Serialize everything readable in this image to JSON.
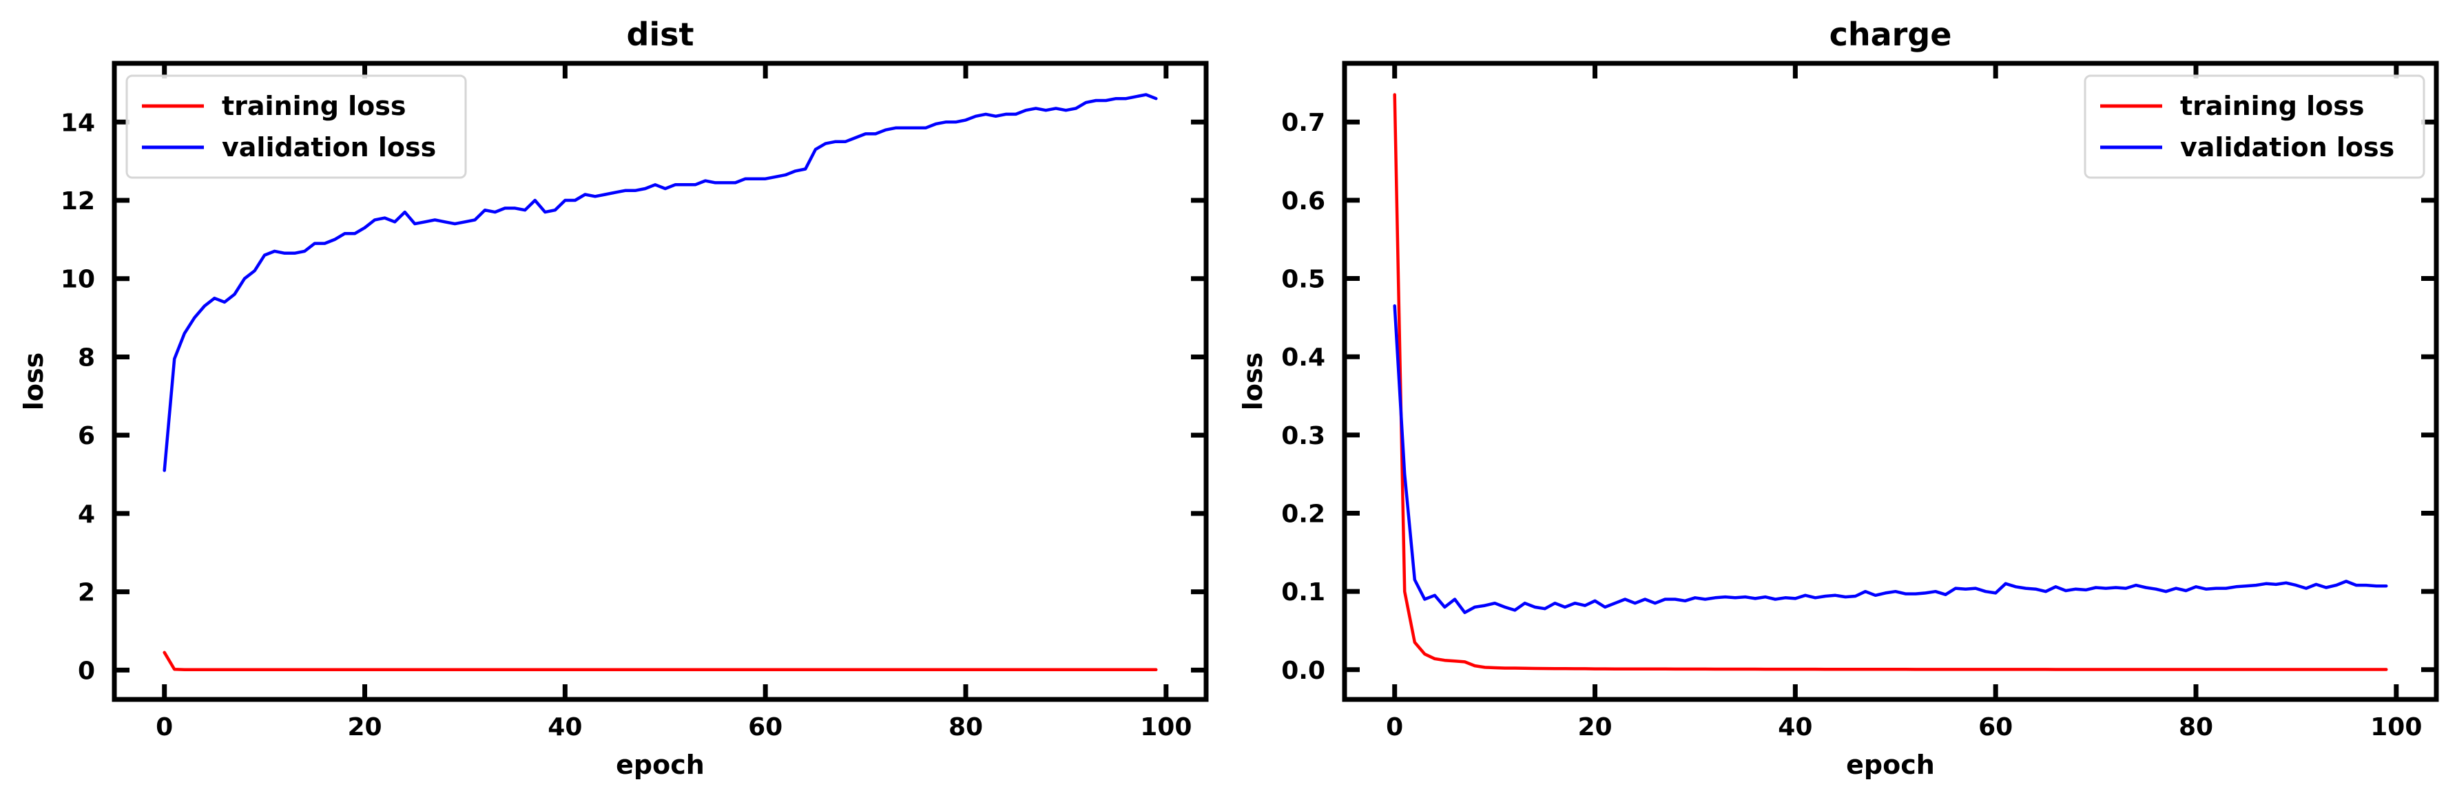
{
  "chart_data": [
    {
      "type": "line",
      "title": "dist",
      "xlabel": "epoch",
      "ylabel": "loss",
      "xlim": [
        -5,
        104
      ],
      "ylim": [
        -0.75,
        15.5
      ],
      "xticks": [
        "0",
        "20",
        "40",
        "60",
        "80",
        "100"
      ],
      "yticks": [
        "0",
        "2",
        "4",
        "6",
        "8",
        "10",
        "12",
        "14"
      ],
      "legend_position": "top-left",
      "grid": false,
      "x": [
        0,
        1,
        2,
        3,
        4,
        5,
        6,
        7,
        8,
        9,
        10,
        11,
        12,
        13,
        14,
        15,
        16,
        17,
        18,
        19,
        20,
        21,
        22,
        23,
        24,
        25,
        26,
        27,
        28,
        29,
        30,
        31,
        32,
        33,
        34,
        35,
        36,
        37,
        38,
        39,
        40,
        41,
        42,
        43,
        44,
        45,
        46,
        47,
        48,
        49,
        50,
        51,
        52,
        53,
        54,
        55,
        56,
        57,
        58,
        59,
        60,
        61,
        62,
        63,
        64,
        65,
        66,
        67,
        68,
        69,
        70,
        71,
        72,
        73,
        74,
        75,
        76,
        77,
        78,
        79,
        80,
        81,
        82,
        83,
        84,
        85,
        86,
        87,
        88,
        89,
        90,
        91,
        92,
        93,
        94,
        95,
        96,
        97,
        98,
        99
      ],
      "series": [
        {
          "name": "training loss",
          "color": "#ff0000",
          "values": [
            0.45,
            0.02,
            0.01,
            0.01,
            0.01,
            0.01,
            0.01,
            0.01,
            0.01,
            0.01,
            0.01,
            0.01,
            0.01,
            0.01,
            0.01,
            0.01,
            0.01,
            0.01,
            0.01,
            0.01,
            0.01,
            0.01,
            0.01,
            0.01,
            0.01,
            0.01,
            0.01,
            0.01,
            0.01,
            0.01,
            0.01,
            0.01,
            0.01,
            0.01,
            0.01,
            0.01,
            0.01,
            0.01,
            0.01,
            0.01,
            0.01,
            0.01,
            0.01,
            0.01,
            0.01,
            0.01,
            0.01,
            0.01,
            0.01,
            0.01,
            0.01,
            0.01,
            0.01,
            0.01,
            0.01,
            0.01,
            0.01,
            0.01,
            0.01,
            0.01,
            0.01,
            0.01,
            0.01,
            0.01,
            0.01,
            0.01,
            0.01,
            0.01,
            0.01,
            0.01,
            0.01,
            0.01,
            0.01,
            0.01,
            0.01,
            0.01,
            0.01,
            0.01,
            0.01,
            0.01,
            0.01,
            0.01,
            0.01,
            0.01,
            0.01,
            0.01,
            0.01,
            0.01,
            0.01,
            0.01,
            0.01,
            0.01,
            0.01,
            0.01,
            0.01,
            0.01,
            0.01,
            0.01,
            0.01,
            0.01
          ]
        },
        {
          "name": "validation loss",
          "color": "#0000ff",
          "values": [
            5.1,
            7.95,
            8.6,
            9.0,
            9.3,
            9.5,
            9.4,
            9.6,
            10.0,
            10.2,
            10.6,
            10.7,
            10.65,
            10.65,
            10.7,
            10.9,
            10.9,
            11.0,
            11.15,
            11.15,
            11.3,
            11.5,
            11.55,
            11.45,
            11.7,
            11.4,
            11.45,
            11.5,
            11.45,
            11.4,
            11.45,
            11.5,
            11.75,
            11.7,
            11.8,
            11.8,
            11.75,
            12.0,
            11.7,
            11.75,
            12.0,
            12.0,
            12.15,
            12.1,
            12.15,
            12.2,
            12.25,
            12.25,
            12.3,
            12.4,
            12.3,
            12.4,
            12.4,
            12.4,
            12.5,
            12.45,
            12.45,
            12.45,
            12.55,
            12.55,
            12.55,
            12.6,
            12.65,
            12.75,
            12.8,
            13.3,
            13.45,
            13.5,
            13.5,
            13.6,
            13.7,
            13.7,
            13.8,
            13.85,
            13.85,
            13.85,
            13.85,
            13.95,
            14.0,
            14.0,
            14.05,
            14.15,
            14.2,
            14.15,
            14.2,
            14.2,
            14.3,
            14.35,
            14.3,
            14.35,
            14.3,
            14.35,
            14.5,
            14.55,
            14.55,
            14.6,
            14.6,
            14.65,
            14.7,
            14.6
          ]
        }
      ]
    },
    {
      "type": "line",
      "title": "charge",
      "xlabel": "epoch",
      "ylabel": "loss",
      "xlim": [
        -5,
        104
      ],
      "ylim": [
        -0.038,
        0.775
      ],
      "xticks": [
        "0",
        "20",
        "40",
        "60",
        "80",
        "100"
      ],
      "yticks": [
        "0.0",
        "0.1",
        "0.2",
        "0.3",
        "0.4",
        "0.5",
        "0.6",
        "0.7"
      ],
      "legend_position": "top-right",
      "grid": false,
      "x": [
        0,
        1,
        2,
        3,
        4,
        5,
        6,
        7,
        8,
        9,
        10,
        11,
        12,
        13,
        14,
        15,
        16,
        17,
        18,
        19,
        20,
        21,
        22,
        23,
        24,
        25,
        26,
        27,
        28,
        29,
        30,
        31,
        32,
        33,
        34,
        35,
        36,
        37,
        38,
        39,
        40,
        41,
        42,
        43,
        44,
        45,
        46,
        47,
        48,
        49,
        50,
        51,
        52,
        53,
        54,
        55,
        56,
        57,
        58,
        59,
        60,
        61,
        62,
        63,
        64,
        65,
        66,
        67,
        68,
        69,
        70,
        71,
        72,
        73,
        74,
        75,
        76,
        77,
        78,
        79,
        80,
        81,
        82,
        83,
        84,
        85,
        86,
        87,
        88,
        89,
        90,
        91,
        92,
        93,
        94,
        95,
        96,
        97,
        98,
        99
      ],
      "series": [
        {
          "name": "training loss",
          "color": "#ff0000",
          "values": [
            0.735,
            0.1,
            0.035,
            0.02,
            0.014,
            0.012,
            0.011,
            0.01,
            0.005,
            0.003,
            0.0025,
            0.002,
            0.002,
            0.0018,
            0.0016,
            0.0015,
            0.0014,
            0.0013,
            0.0012,
            0.0012,
            0.0011,
            0.0011,
            0.001,
            0.001,
            0.001,
            0.0009,
            0.0009,
            0.0009,
            0.0008,
            0.0008,
            0.0008,
            0.0008,
            0.0007,
            0.0007,
            0.0007,
            0.0007,
            0.0007,
            0.0006,
            0.0006,
            0.0006,
            0.0006,
            0.0006,
            0.0006,
            0.0005,
            0.0005,
            0.0005,
            0.0005,
            0.0005,
            0.0005,
            0.0005,
            0.0005,
            0.0005,
            0.0004,
            0.0004,
            0.0004,
            0.0004,
            0.0004,
            0.0004,
            0.0004,
            0.0004,
            0.0004,
            0.0004,
            0.0004,
            0.0004,
            0.0004,
            0.0004,
            0.0003,
            0.0003,
            0.0003,
            0.0003,
            0.0003,
            0.0003,
            0.0003,
            0.0003,
            0.0003,
            0.0003,
            0.0003,
            0.0003,
            0.0003,
            0.0003,
            0.0003,
            0.0003,
            0.0003,
            0.0003,
            0.0003,
            0.0003,
            0.0003,
            0.0003,
            0.0003,
            0.0003,
            0.0003,
            0.0003,
            0.0003,
            0.0003,
            0.0003,
            0.0003,
            0.0003,
            0.0003,
            0.0003,
            0.0003
          ]
        },
        {
          "name": "validation loss",
          "color": "#0000ff",
          "values": [
            0.465,
            0.25,
            0.115,
            0.09,
            0.095,
            0.08,
            0.09,
            0.073,
            0.08,
            0.082,
            0.085,
            0.08,
            0.076,
            0.085,
            0.08,
            0.078,
            0.085,
            0.08,
            0.085,
            0.082,
            0.088,
            0.08,
            0.085,
            0.09,
            0.085,
            0.09,
            0.085,
            0.09,
            0.09,
            0.088,
            0.092,
            0.09,
            0.092,
            0.093,
            0.092,
            0.093,
            0.091,
            0.093,
            0.09,
            0.092,
            0.091,
            0.095,
            0.092,
            0.094,
            0.095,
            0.093,
            0.094,
            0.1,
            0.095,
            0.098,
            0.1,
            0.097,
            0.097,
            0.098,
            0.1,
            0.096,
            0.104,
            0.103,
            0.104,
            0.1,
            0.098,
            0.11,
            0.106,
            0.104,
            0.103,
            0.1,
            0.106,
            0.101,
            0.103,
            0.102,
            0.105,
            0.104,
            0.105,
            0.104,
            0.108,
            0.105,
            0.103,
            0.1,
            0.104,
            0.101,
            0.106,
            0.103,
            0.104,
            0.104,
            0.106,
            0.107,
            0.108,
            0.11,
            0.109,
            0.111,
            0.108,
            0.104,
            0.109,
            0.105,
            0.108,
            0.113,
            0.108,
            0.108,
            0.107,
            0.107
          ]
        }
      ]
    }
  ]
}
